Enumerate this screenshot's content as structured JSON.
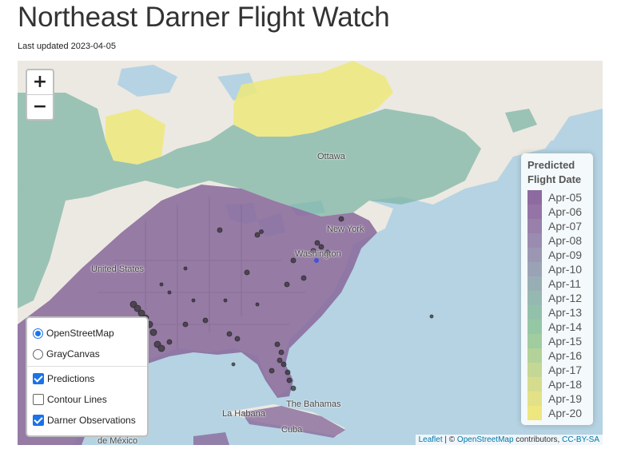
{
  "header": {
    "title": "Northeast Darner Flight Watch",
    "updated": "Last updated 2023-04-05"
  },
  "map": {
    "labels": {
      "ottawa": "Ottawa",
      "new_york": "New York",
      "washington": "Washington",
      "united_states": "United States",
      "la_habana": "La Habana",
      "bahamas": "The Bahamas",
      "cuba": "Cuba",
      "mexico": "de México"
    },
    "colors": {
      "water": "#b5d3e3",
      "land": "#ece9e2",
      "purple": "#8a6b9c",
      "teal": "#7fb5a5",
      "yellow": "#ede97a"
    }
  },
  "zoom": {
    "in": "+",
    "out": "−"
  },
  "layers": {
    "base": [
      {
        "label": "OpenStreetMap",
        "selected": true
      },
      {
        "label": "GrayCanvas",
        "selected": false
      }
    ],
    "overlays": [
      {
        "label": "Predictions",
        "checked": true
      },
      {
        "label": "Contour Lines",
        "checked": false
      },
      {
        "label": "Darner Observations",
        "checked": true
      }
    ]
  },
  "legend": {
    "title_line1": "Predicted",
    "title_line2": "Flight Date",
    "items": [
      {
        "label": "Apr-05",
        "color": "#8d6ba1"
      },
      {
        "label": "Apr-06",
        "color": "#9474a6"
      },
      {
        "label": "Apr-07",
        "color": "#9880ab"
      },
      {
        "label": "Apr-08",
        "color": "#9a8bb0"
      },
      {
        "label": "Apr-09",
        "color": "#9b97b3"
      },
      {
        "label": "Apr-10",
        "color": "#9aa3b5"
      },
      {
        "label": "Apr-11",
        "color": "#98aeb5"
      },
      {
        "label": "Apr-12",
        "color": "#95b8b1"
      },
      {
        "label": "Apr-13",
        "color": "#92c0ab"
      },
      {
        "label": "Apr-14",
        "color": "#95c7a5"
      },
      {
        "label": "Apr-15",
        "color": "#a0cc9f"
      },
      {
        "label": "Apr-16",
        "color": "#b2d299"
      },
      {
        "label": "Apr-17",
        "color": "#c4d794"
      },
      {
        "label": "Apr-18",
        "color": "#d5dc8e"
      },
      {
        "label": "Apr-19",
        "color": "#e2e188"
      },
      {
        "label": "Apr-20",
        "color": "#eee67f"
      }
    ]
  },
  "attribution": {
    "leaflet": "Leaflet",
    "sep": " | © ",
    "osm": "OpenStreetMap",
    "contributors": " contributors, ",
    "license": "CC-BY-SA"
  }
}
